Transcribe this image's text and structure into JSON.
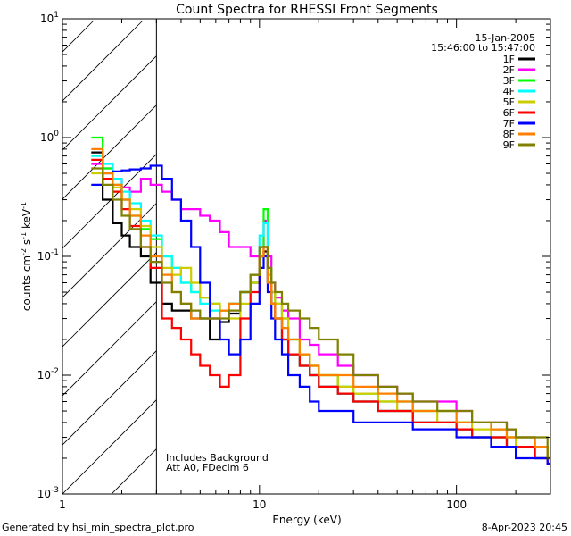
{
  "chart_data": {
    "type": "line",
    "title": "Count Spectra for RHESSI Front Segments",
    "xlabel": "Energy (keV)",
    "ylabel_parts": {
      "base": "counts cm",
      "exp1": "-2",
      "mid": " s",
      "exp2": "-1",
      "unit": " keV",
      "exp3": "-1"
    },
    "xscale": "log",
    "yscale": "log",
    "xlim": [
      1,
      300
    ],
    "ylim": [
      0.001,
      10
    ],
    "x_ticks": [
      {
        "value": 1,
        "label": "1"
      },
      {
        "value": 10,
        "label": "10"
      },
      {
        "value": 100,
        "label": "100"
      }
    ],
    "y_ticks": [
      {
        "value": 0.001,
        "base": "10",
        "exp": "-3"
      },
      {
        "value": 0.01,
        "base": "10",
        "exp": "-2"
      },
      {
        "value": 0.1,
        "base": "10",
        "exp": "-1"
      },
      {
        "value": 1,
        "base": "10",
        "exp": "0"
      },
      {
        "value": 10,
        "base": "10",
        "exp": "1"
      }
    ],
    "hatched_region": {
      "x_range": [
        1,
        3
      ]
    },
    "date": "15-Jan-2005",
    "time_range": "15:46:00 to 15:47:00",
    "annotations": [
      "Includes Background",
      "Att A0, FDecim 6"
    ],
    "series": [
      {
        "name": "1F",
        "color": "#000000",
        "x": [
          1.4,
          1.6,
          1.8,
          2.0,
          2.2,
          2.5,
          2.8,
          3.2,
          3.6,
          4.0,
          4.5,
          5,
          5.6,
          6.3,
          7,
          8,
          9,
          10,
          10.5,
          11,
          11.5,
          12,
          13,
          14,
          16,
          18,
          20,
          25,
          30,
          40,
          50,
          60,
          80,
          100,
          120,
          150,
          180,
          200,
          250,
          290
        ],
        "y": [
          0.75,
          0.3,
          0.19,
          0.15,
          0.12,
          0.1,
          0.06,
          0.04,
          0.035,
          0.035,
          0.03,
          0.03,
          0.02,
          0.028,
          0.033,
          0.05,
          0.06,
          0.1,
          0.11,
          0.06,
          0.04,
          0.03,
          0.02,
          0.015,
          0.012,
          0.01,
          0.008,
          0.007,
          0.006,
          0.005,
          0.005,
          0.004,
          0.004,
          0.0035,
          0.003,
          0.003,
          0.0025,
          0.0025,
          0.002,
          0.002
        ]
      },
      {
        "name": "2F",
        "color": "#ff00ff",
        "x": [
          1.4,
          1.6,
          1.8,
          2.0,
          2.2,
          2.5,
          2.8,
          3.2,
          3.6,
          4.0,
          4.5,
          5,
          5.6,
          6.3,
          7,
          8,
          9,
          10,
          10.5,
          11,
          11.5,
          12,
          13,
          14,
          16,
          18,
          20,
          25,
          30,
          40,
          50,
          60,
          80,
          100,
          120,
          150,
          180,
          200,
          250,
          290
        ],
        "y": [
          0.6,
          0.55,
          0.45,
          0.38,
          0.35,
          0.45,
          0.4,
          0.35,
          0.3,
          0.25,
          0.25,
          0.22,
          0.2,
          0.16,
          0.12,
          0.12,
          0.1,
          0.12,
          0.2,
          0.1,
          0.06,
          0.045,
          0.035,
          0.03,
          0.02,
          0.018,
          0.015,
          0.012,
          0.01,
          0.008,
          0.007,
          0.006,
          0.006,
          0.005,
          0.004,
          0.004,
          0.0035,
          0.003,
          0.0025,
          0.002
        ]
      },
      {
        "name": "3F",
        "color": "#00ff00",
        "x": [
          1.4,
          1.6,
          1.8,
          2.0,
          2.2,
          2.5,
          2.8,
          3.2,
          3.6,
          4.0,
          4.5,
          5,
          5.6,
          6.3,
          7,
          8,
          9,
          10,
          10.5,
          11,
          11.5,
          12,
          13,
          14,
          16,
          18,
          20,
          25,
          30,
          40,
          50,
          60,
          80,
          100,
          120,
          150,
          180,
          200,
          250,
          290
        ],
        "y": [
          1.0,
          0.55,
          0.4,
          0.3,
          0.22,
          0.17,
          0.14,
          0.1,
          0.08,
          0.06,
          0.05,
          0.045,
          0.04,
          0.035,
          0.04,
          0.05,
          0.06,
          0.12,
          0.25,
          0.08,
          0.05,
          0.04,
          0.03,
          0.02,
          0.015,
          0.012,
          0.01,
          0.008,
          0.007,
          0.006,
          0.006,
          0.005,
          0.005,
          0.004,
          0.004,
          0.0035,
          0.003,
          0.003,
          0.0025,
          0.002
        ]
      },
      {
        "name": "4F",
        "color": "#00ffff",
        "x": [
          1.4,
          1.6,
          1.8,
          2.0,
          2.2,
          2.5,
          2.8,
          3.2,
          3.6,
          4.0,
          4.5,
          5,
          5.6,
          6.3,
          7,
          8,
          9,
          10,
          10.5,
          11,
          11.5,
          12,
          13,
          14,
          16,
          18,
          20,
          25,
          30,
          40,
          50,
          60,
          80,
          100,
          120,
          150,
          180,
          200,
          250,
          290
        ],
        "y": [
          0.7,
          0.6,
          0.45,
          0.35,
          0.28,
          0.2,
          0.15,
          0.1,
          0.08,
          0.06,
          0.05,
          0.04,
          0.035,
          0.035,
          0.04,
          0.05,
          0.07,
          0.15,
          0.19,
          0.07,
          0.04,
          0.03,
          0.02,
          0.015,
          0.012,
          0.01,
          0.008,
          0.007,
          0.006,
          0.005,
          0.005,
          0.004,
          0.004,
          0.0035,
          0.003,
          0.003,
          0.0025,
          0.0025,
          0.002,
          0.002
        ]
      },
      {
        "name": "5F",
        "color": "#cccc00",
        "x": [
          1.4,
          1.6,
          1.8,
          2.0,
          2.2,
          2.5,
          2.8,
          3.2,
          3.6,
          4.0,
          4.5,
          5,
          5.6,
          6.3,
          7,
          8,
          9,
          10,
          10.5,
          11,
          11.5,
          12,
          13,
          14,
          16,
          18,
          20,
          25,
          30,
          40,
          50,
          60,
          80,
          100,
          120,
          150,
          180,
          200,
          250,
          290
        ],
        "y": [
          0.5,
          0.45,
          0.38,
          0.3,
          0.25,
          0.18,
          0.12,
          0.08,
          0.07,
          0.08,
          0.06,
          0.045,
          0.04,
          0.035,
          0.03,
          0.04,
          0.06,
          0.1,
          0.12,
          0.07,
          0.05,
          0.04,
          0.03,
          0.02,
          0.015,
          0.012,
          0.01,
          0.008,
          0.007,
          0.006,
          0.005,
          0.005,
          0.004,
          0.004,
          0.0035,
          0.003,
          0.003,
          0.0025,
          0.0025,
          0.002
        ]
      },
      {
        "name": "6F",
        "color": "#ff0000",
        "x": [
          1.4,
          1.6,
          1.8,
          2.0,
          2.2,
          2.5,
          2.8,
          3.2,
          3.6,
          4.0,
          4.5,
          5,
          5.6,
          6.3,
          7,
          8,
          9,
          10,
          10.5,
          11,
          11.5,
          12,
          13,
          14,
          16,
          18,
          20,
          25,
          30,
          40,
          50,
          60,
          80,
          100,
          120,
          150,
          180,
          200,
          250,
          290
        ],
        "y": [
          0.65,
          0.45,
          0.35,
          0.25,
          0.18,
          0.12,
          0.08,
          0.03,
          0.025,
          0.02,
          0.015,
          0.012,
          0.01,
          0.008,
          0.01,
          0.03,
          0.05,
          0.1,
          0.12,
          0.06,
          0.04,
          0.03,
          0.02,
          0.015,
          0.012,
          0.01,
          0.008,
          0.007,
          0.006,
          0.005,
          0.005,
          0.004,
          0.004,
          0.0035,
          0.003,
          0.003,
          0.0025,
          0.0025,
          0.002,
          0.0018
        ]
      },
      {
        "name": "7F",
        "color": "#0000ff",
        "x": [
          1.4,
          1.6,
          1.8,
          2.0,
          2.2,
          2.5,
          2.8,
          3.2,
          3.6,
          4.0,
          4.5,
          5,
          5.6,
          6.3,
          7,
          8,
          9,
          10,
          10.5,
          11,
          11.5,
          12,
          13,
          14,
          16,
          18,
          20,
          25,
          30,
          40,
          50,
          60,
          80,
          100,
          120,
          150,
          180,
          200,
          250,
          290
        ],
        "y": [
          0.4,
          0.5,
          0.52,
          0.53,
          0.54,
          0.55,
          0.58,
          0.45,
          0.3,
          0.2,
          0.12,
          0.06,
          0.03,
          0.02,
          0.015,
          0.02,
          0.04,
          0.08,
          0.1,
          0.05,
          0.03,
          0.02,
          0.015,
          0.01,
          0.008,
          0.006,
          0.005,
          0.005,
          0.004,
          0.004,
          0.004,
          0.0035,
          0.0035,
          0.003,
          0.003,
          0.0025,
          0.0025,
          0.002,
          0.002,
          0.0018
        ]
      },
      {
        "name": "8F",
        "color": "#ff8000",
        "x": [
          1.4,
          1.6,
          1.8,
          2.0,
          2.2,
          2.5,
          2.8,
          3.2,
          3.6,
          4.0,
          4.5,
          5,
          5.6,
          6.3,
          7,
          8,
          9,
          10,
          10.5,
          11,
          11.5,
          12,
          13,
          14,
          16,
          18,
          20,
          25,
          30,
          40,
          50,
          60,
          80,
          100,
          120,
          150,
          180,
          200,
          250,
          290
        ],
        "y": [
          0.8,
          0.5,
          0.4,
          0.3,
          0.22,
          0.15,
          0.1,
          0.07,
          0.05,
          0.04,
          0.03,
          0.03,
          0.03,
          0.035,
          0.04,
          0.05,
          0.07,
          0.1,
          0.12,
          0.06,
          0.04,
          0.03,
          0.025,
          0.02,
          0.015,
          0.012,
          0.01,
          0.01,
          0.008,
          0.007,
          0.006,
          0.005,
          0.005,
          0.004,
          0.004,
          0.0035,
          0.003,
          0.003,
          0.0025,
          0.002
        ]
      },
      {
        "name": "9F",
        "color": "#808000",
        "x": [
          1.4,
          1.6,
          1.8,
          2.0,
          2.2,
          2.5,
          2.8,
          3.2,
          3.6,
          4.0,
          4.5,
          5,
          5.6,
          6.3,
          7,
          8,
          9,
          10,
          10.5,
          11,
          11.5,
          12,
          13,
          14,
          16,
          18,
          20,
          25,
          30,
          40,
          50,
          60,
          80,
          100,
          120,
          150,
          180,
          200,
          250,
          290
        ],
        "y": [
          0.55,
          0.4,
          0.3,
          0.22,
          0.17,
          0.12,
          0.09,
          0.06,
          0.05,
          0.04,
          0.035,
          0.03,
          0.03,
          0.03,
          0.035,
          0.05,
          0.07,
          0.12,
          0.12,
          0.08,
          0.06,
          0.05,
          0.04,
          0.035,
          0.03,
          0.025,
          0.02,
          0.015,
          0.01,
          0.008,
          0.007,
          0.006,
          0.005,
          0.005,
          0.004,
          0.004,
          0.0035,
          0.003,
          0.003,
          0.002
        ]
      }
    ]
  },
  "footer": {
    "left": "Generated by hsi_min_spectra_plot.pro",
    "right": "8-Apr-2023 20:45"
  }
}
